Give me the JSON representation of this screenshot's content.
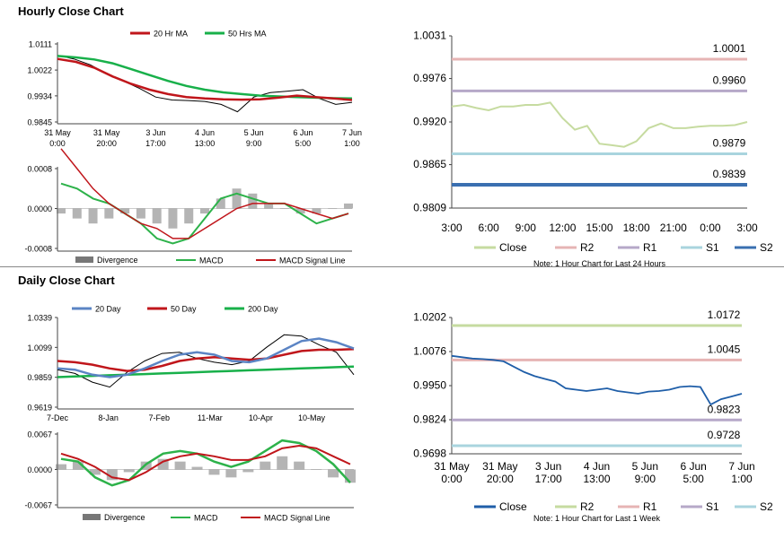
{
  "sections": {
    "hourly_title": "Hourly Close Chart",
    "daily_title": "Daily Close Chart"
  },
  "colors": {
    "ma20_hourly": "#c0161b",
    "ma50_hourly": "#18b04a",
    "price": "#000000",
    "divergence": "#777777",
    "macd": "#2db24a",
    "signal": "#c0161b",
    "close_hourly": "#c6dba0",
    "R2_hourly": "#e6b4b4",
    "R1_hourly": "#b6a8c8",
    "S1_hourly": "#a9d4de",
    "S2_hourly": "#3a6fb0",
    "ma20_daily": "#5b84c4",
    "ma50_daily": "#c0161b",
    "ma200_daily": "#18b04a",
    "close_daily": "#1f5ea8",
    "R2_daily": "#c6dba0",
    "R1_daily": "#e6b4b4",
    "S1_daily": "#b6a8c8",
    "S2_daily": "#a9d4de"
  },
  "chart_data": [
    {
      "id": "hourly-price",
      "type": "line",
      "legend": [
        "20 Hr MA",
        "50 Hrs MA"
      ],
      "y_ticks": [
        "1.0111",
        "1.0022",
        "0.9934",
        "0.9845"
      ],
      "ylim": [
        0.9845,
        1.0111
      ],
      "x_ticks": [
        "31 May\n0:00",
        "31 May\n20:00",
        "3 Jun\n17:00",
        "4 Jun\n13:00",
        "5 Jun\n9:00",
        "6 Jun\n5:00",
        "7 Jun\n1:00"
      ],
      "series": [
        {
          "name": "20 Hr MA",
          "values": [
            1.006,
            1.005,
            1.003,
            1.0,
            0.9975,
            0.9955,
            0.994,
            0.993,
            0.9925,
            0.9922,
            0.9921,
            0.9922,
            0.9928,
            0.9935,
            0.993,
            0.9925,
            0.992
          ]
        },
        {
          "name": "50 Hrs MA",
          "values": [
            1.007,
            1.0065,
            1.0058,
            1.0045,
            1.0025,
            1.0005,
            0.9985,
            0.9968,
            0.9955,
            0.9946,
            0.994,
            0.9935,
            0.9932,
            0.993,
            0.9928,
            0.9926,
            0.9925
          ]
        },
        {
          "name": "Close",
          "values": [
            1.0072,
            1.006,
            1.004,
            1.001,
            0.9985,
            0.996,
            0.993,
            0.992,
            0.9918,
            0.9915,
            0.9905,
            0.988,
            0.993,
            0.9945,
            0.995,
            0.9955,
            0.9925,
            0.9905,
            0.9912
          ]
        }
      ]
    },
    {
      "id": "hourly-macd",
      "type": "bar",
      "legend": [
        "Divergence",
        "MACD",
        "MACD Signal Line"
      ],
      "y_ticks": [
        "0.0008",
        "0.0000",
        "-0.0008"
      ],
      "ylim": [
        -0.0008,
        0.0008
      ],
      "series": [
        {
          "name": "Divergence",
          "values": [
            -0.0001,
            -0.0002,
            -0.0003,
            -0.0002,
            -0.0001,
            -0.0002,
            -0.0003,
            -0.0004,
            -0.0003,
            -0.0001,
            0.0002,
            0.0004,
            0.0003,
            0.0001,
            0.0,
            -0.0001,
            -0.0001,
            0.0,
            0.0001
          ]
        },
        {
          "name": "MACD",
          "values": [
            0.0005,
            0.0004,
            0.0002,
            0.0001,
            -0.0001,
            -0.0003,
            -0.0006,
            -0.0007,
            -0.0006,
            -0.0002,
            0.0002,
            0.0003,
            0.0002,
            0.0001,
            0.0001,
            -0.0001,
            -0.0003,
            -0.0002,
            -0.0001
          ]
        },
        {
          "name": "MACD Signal Line",
          "values": [
            0.0012,
            0.0008,
            0.0004,
            0.0001,
            -0.0001,
            -0.0003,
            -0.0004,
            -0.0006,
            -0.0006,
            -0.0004,
            -0.0002,
            0.0,
            0.0001,
            0.0001,
            0.0001,
            0.0,
            -0.0001,
            -0.0002,
            -0.0001
          ]
        }
      ]
    },
    {
      "id": "hourly-levels",
      "type": "line",
      "y_ticks": [
        "1.0031",
        "0.9976",
        "0.9920",
        "0.9865",
        "0.9809"
      ],
      "ylim": [
        0.9809,
        1.0031
      ],
      "x_ticks": [
        "3:00",
        "6:00",
        "9:00",
        "12:00",
        "15:00",
        "18:00",
        "21:00",
        "0:00",
        "3:00"
      ],
      "levels": [
        {
          "name": "R2",
          "value": 1.0001,
          "label": "1.0001"
        },
        {
          "name": "R1",
          "value": 0.996,
          "label": "0.9960"
        },
        {
          "name": "S1",
          "value": 0.9879,
          "label": "0.9879"
        },
        {
          "name": "S2",
          "value": 0.9839,
          "label": "0.9839"
        }
      ],
      "series": [
        {
          "name": "Close",
          "values": [
            0.994,
            0.9942,
            0.9938,
            0.9935,
            0.994,
            0.994,
            0.9942,
            0.9942,
            0.9945,
            0.9925,
            0.991,
            0.9915,
            0.9892,
            0.989,
            0.9888,
            0.9895,
            0.9912,
            0.9918,
            0.9912,
            0.9912,
            0.9914,
            0.9915,
            0.9915,
            0.9916,
            0.992
          ]
        }
      ],
      "legend": [
        "Close",
        "R2",
        "R1",
        "S1",
        "S2"
      ],
      "note": "Note: 1 Hour Chart for Last 24 Hours"
    },
    {
      "id": "daily-price",
      "type": "line",
      "legend": [
        "20 Day",
        "50 Day",
        "200 Day"
      ],
      "y_ticks": [
        "1.0339",
        "1.0099",
        "0.9859",
        "0.9619"
      ],
      "ylim": [
        0.9619,
        1.0339
      ],
      "x_ticks": [
        "7-Dec",
        "8-Jan",
        "7-Feb",
        "11-Mar",
        "10-Apr",
        "10-May"
      ],
      "series": [
        {
          "name": "20 Day",
          "values": [
            0.993,
            0.992,
            0.988,
            0.986,
            0.988,
            0.993,
            0.999,
            1.004,
            1.006,
            1.004,
            0.999,
            0.998,
            1.001,
            1.008,
            1.015,
            1.017,
            1.014,
            1.009
          ]
        },
        {
          "name": "50 Day",
          "values": [
            0.999,
            0.998,
            0.996,
            0.993,
            0.991,
            0.992,
            0.995,
            0.999,
            1.001,
            1.002,
            1.001,
            1.0,
            1.001,
            1.004,
            1.007,
            1.008,
            1.008,
            1.0085
          ]
        },
        {
          "name": "200 Day",
          "values": [
            0.986,
            0.9865,
            0.987,
            0.9875,
            0.988,
            0.9885,
            0.989,
            0.9895,
            0.99,
            0.9905,
            0.991,
            0.9915,
            0.992,
            0.9925,
            0.993,
            0.9935,
            0.994,
            0.9945
          ]
        },
        {
          "name": "Close",
          "values": [
            0.992,
            0.989,
            0.982,
            0.978,
            0.99,
            0.999,
            1.005,
            1.006,
            1.001,
            0.998,
            0.996,
            0.999,
            1.01,
            1.02,
            1.019,
            1.012,
            1.006,
            0.988
          ]
        }
      ]
    },
    {
      "id": "daily-macd",
      "type": "bar",
      "legend": [
        "Divergence",
        "MACD",
        "MACD Signal Line"
      ],
      "y_ticks": [
        "0.0067",
        "0.0000",
        "-0.0067"
      ],
      "ylim": [
        -0.0067,
        0.0067
      ],
      "series": [
        {
          "name": "Divergence",
          "values": [
            0.001,
            0.0015,
            -0.001,
            -0.002,
            -0.0005,
            0.0015,
            0.002,
            0.0015,
            0.0005,
            -0.001,
            -0.0015,
            -0.0005,
            0.0015,
            0.0025,
            0.0015,
            0.0,
            -0.0015,
            -0.0025
          ]
        },
        {
          "name": "MACD",
          "values": [
            0.002,
            0.0015,
            -0.0015,
            -0.003,
            -0.002,
            0.001,
            0.003,
            0.0035,
            0.003,
            0.0015,
            0.0005,
            0.0015,
            0.0035,
            0.0055,
            0.005,
            0.0035,
            0.001,
            -0.0025
          ]
        },
        {
          "name": "MACD Signal Line",
          "values": [
            0.003,
            0.002,
            0.0005,
            -0.0015,
            -0.002,
            -0.0005,
            0.0015,
            0.0025,
            0.003,
            0.0025,
            0.0018,
            0.0018,
            0.0025,
            0.004,
            0.0045,
            0.004,
            0.0025,
            0.001
          ]
        }
      ]
    },
    {
      "id": "daily-levels",
      "type": "line",
      "y_ticks": [
        "1.0202",
        "1.0076",
        "0.9950",
        "0.9824",
        "0.9698"
      ],
      "ylim": [
        0.9698,
        1.0202
      ],
      "x_ticks": [
        "31 May\n0:00",
        "31 May\n20:00",
        "3 Jun\n17:00",
        "4 Jun\n13:00",
        "5 Jun\n9:00",
        "6 Jun\n5:00",
        "7 Jun\n1:00"
      ],
      "levels": [
        {
          "name": "R2",
          "value": 1.0172,
          "label": "1.0172"
        },
        {
          "name": "R1",
          "value": 1.0045,
          "label": "1.0045"
        },
        {
          "name": "S1",
          "value": 0.9823,
          "label": "0.9823"
        },
        {
          "name": "S2",
          "value": 0.9728,
          "label": "0.9728"
        }
      ],
      "series": [
        {
          "name": "Close",
          "values": [
            1.006,
            1.0055,
            1.005,
            1.0048,
            1.0045,
            1.004,
            1.002,
            1.0,
            0.9985,
            0.9975,
            0.9965,
            0.994,
            0.9935,
            0.993,
            0.9935,
            0.994,
            0.993,
            0.9925,
            0.992,
            0.9928,
            0.993,
            0.9935,
            0.9945,
            0.9948,
            0.9945,
            0.988,
            0.99,
            0.991,
            0.992
          ]
        }
      ],
      "legend": [
        "Close",
        "R2",
        "R1",
        "S1",
        "S2"
      ],
      "note": "Note: 1 Hour Chart for Last 1 Week"
    }
  ]
}
